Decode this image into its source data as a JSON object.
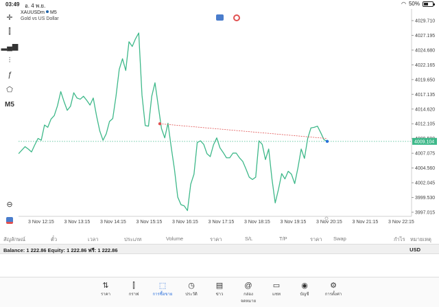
{
  "status": {
    "time": "03:49",
    "date": "อ. 4 พ.ย.",
    "battery": "50%",
    "battery_level": 0.5
  },
  "chart": {
    "symbol": "XAUUSDm",
    "timeframe": "M5",
    "description": "Gold vs US Dollar",
    "timeframe_button": "M5",
    "current_price": "4009.104",
    "colors": {
      "line": "#3db889",
      "bid_line": "#3db889",
      "trend": "#e05050",
      "price_tag": "#3db889"
    }
  },
  "chart_data": {
    "type": "line",
    "y_ticks": [
      "4029.710",
      "4027.195",
      "4024.680",
      "4022.165",
      "4019.650",
      "4017.135",
      "4014.620",
      "4012.105",
      "4009.590",
      "4007.075",
      "4004.560",
      "4002.045",
      "3999.530",
      "3997.015"
    ],
    "x_ticks": [
      "3 Nov 12:15",
      "3 Nov 13:15",
      "3 Nov 14:15",
      "3 Nov 15:15",
      "3 Nov 16:15",
      "3 Nov 17:15",
      "3 Nov 18:15",
      "3 Nov 19:15",
      "3 Nov 20:15",
      "3 Nov 21:15",
      "3 Nov 22:15"
    ],
    "ylim": [
      3997.015,
      4029.71
    ],
    "series": [
      {
        "values": [
          4007.0,
          4007.6,
          4008.2,
          4007.8,
          4007.3,
          4008.5,
          4009.6,
          4009.3,
          4011.9,
          4011.5,
          4012.9,
          4013.5,
          4015.2,
          4017.6,
          4015.9,
          4014.4,
          4015.1,
          4017.4,
          4016.5,
          4016.3,
          4016.8,
          4016.1,
          4015.3,
          4016.5,
          4013.5,
          4010.9,
          4009.3,
          4010.4,
          4012.5,
          4013.0,
          4016.8,
          4021.4,
          4023.2,
          4021.2,
          4026.1,
          4025.3,
          4026.6,
          4027.6,
          4017.0,
          4011.8,
          4011.7,
          4016.8,
          4019.1,
          4015.2,
          4011.3,
          4009.7,
          4012.2,
          4008.1,
          4004.3,
          3999.6,
          3998.3,
          3998.1,
          3997.3,
          4001.8,
          4003.5,
          4008.9,
          4009.2,
          4008.6,
          4007.0,
          4006.5,
          4008.5,
          4009.7,
          4008.0,
          4007.2,
          4006.3,
          4006.3,
          4007.1,
          4007.1,
          4006.3,
          4005.7,
          4004.4,
          4003.0,
          4002.6,
          4003.0,
          4009.2,
          4008.6,
          4006.0,
          4007.8,
          4002.7,
          3998.6,
          4000.9,
          4003.6,
          4002.7,
          4004.0,
          4003.5,
          4001.9,
          4004.6,
          4007.8,
          4006.2,
          4009.6,
          4011.4,
          4011.5,
          4011.7,
          4010.6,
          4009.4,
          4009.1
        ]
      }
    ],
    "trend_line": {
      "from": 4012.105,
      "to": 4009.59
    },
    "current_bid": 4009.104,
    "grid": false
  },
  "table": {
    "columns": [
      "สัญลักษณ์",
      "ตั๋ว",
      "เวลา",
      "ประเภท",
      "Volume",
      "ราคา",
      "S/L",
      "T/P",
      "ราคา",
      "Swap",
      "กำไร",
      "หมายเหตุ"
    ]
  },
  "account": {
    "summary": "Balance: 1 222.86  Equity: 1 222.86  ฟรี: 1 222.86",
    "currency": "USD"
  },
  "tabs": [
    {
      "label": "ราคา",
      "icon": "price-arrows-icon"
    },
    {
      "label": "กราฟ",
      "icon": "candles-icon"
    },
    {
      "label": "การซื้อขาย",
      "icon": "trade-chart-icon",
      "active": true
    },
    {
      "label": "ประวัติ",
      "icon": "history-icon"
    },
    {
      "label": "ข่าว",
      "icon": "news-icon"
    },
    {
      "label": "กล่องจดหมาย",
      "icon": "mailbox-icon"
    },
    {
      "label": "แชท",
      "icon": "chat-icon"
    },
    {
      "label": "บัญชี",
      "icon": "account-icon"
    },
    {
      "label": "การตั้งค่า",
      "icon": "settings-gear-icon"
    }
  ]
}
